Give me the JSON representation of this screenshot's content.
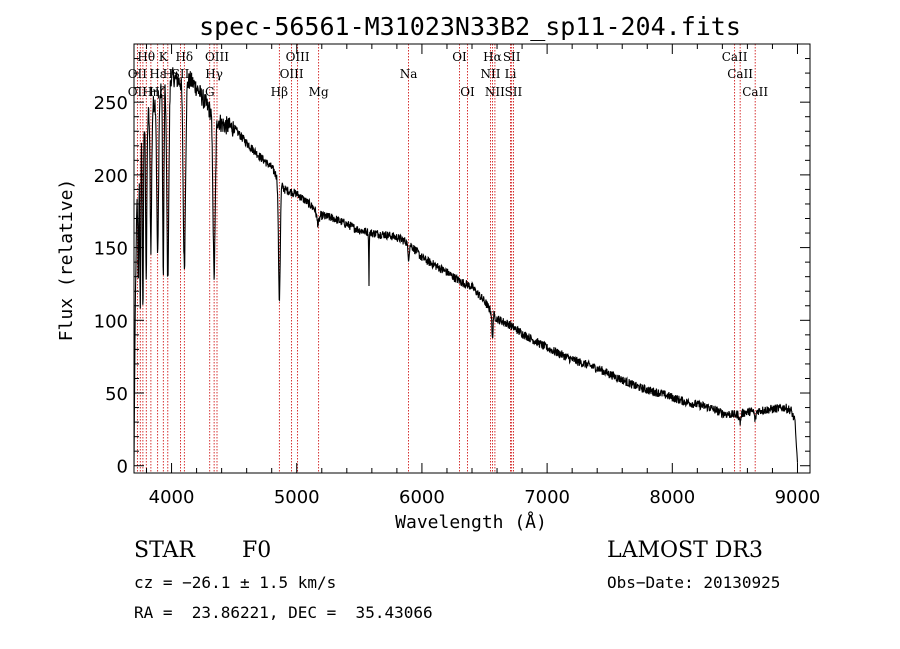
{
  "chart_data": {
    "type": "line",
    "title": "spec-56561-M31023N33B2_sp11-204.fits",
    "xlabel": "Wavelength (Å)",
    "ylabel": "Flux (relative)",
    "xlim": [
      3700,
      9100
    ],
    "ylim": [
      -5,
      290
    ],
    "xticks": [
      4000,
      5000,
      6000,
      7000,
      8000,
      9000
    ],
    "yticks": [
      0,
      50,
      100,
      150,
      200,
      250
    ],
    "x_minor_step": 200,
    "y_minor_step": 10,
    "grid": false,
    "series": [
      {
        "name": "spectrum",
        "continuum": [
          [
            3700,
            0
          ],
          [
            3710,
            110
          ],
          [
            3730,
            215
          ],
          [
            3760,
            225
          ],
          [
            3800,
            240
          ],
          [
            3850,
            248
          ],
          [
            3900,
            255
          ],
          [
            3950,
            262
          ],
          [
            4000,
            268
          ],
          [
            4050,
            265
          ],
          [
            4100,
            262
          ],
          [
            4150,
            265
          ],
          [
            4200,
            260
          ],
          [
            4300,
            245
          ],
          [
            4400,
            235
          ],
          [
            4500,
            232
          ],
          [
            4600,
            222
          ],
          [
            4700,
            213
          ],
          [
            4800,
            205
          ],
          [
            4900,
            190
          ],
          [
            5000,
            187
          ],
          [
            5100,
            180
          ],
          [
            5200,
            172
          ],
          [
            5300,
            170
          ],
          [
            5400,
            166
          ],
          [
            5500,
            162
          ],
          [
            5600,
            160
          ],
          [
            5700,
            159
          ],
          [
            5800,
            157
          ],
          [
            5900,
            153
          ],
          [
            6000,
            143
          ],
          [
            6100,
            138
          ],
          [
            6200,
            133
          ],
          [
            6300,
            127
          ],
          [
            6400,
            123
          ],
          [
            6500,
            113
          ],
          [
            6560,
            105
          ],
          [
            6600,
            101
          ],
          [
            6700,
            97
          ],
          [
            6800,
            91
          ],
          [
            6900,
            86
          ],
          [
            7000,
            81
          ],
          [
            7100,
            77
          ],
          [
            7200,
            73
          ],
          [
            7300,
            70
          ],
          [
            7400,
            67
          ],
          [
            7500,
            63
          ],
          [
            7600,
            59
          ],
          [
            7700,
            55
          ],
          [
            7800,
            52
          ],
          [
            7900,
            50
          ],
          [
            8000,
            47
          ],
          [
            8100,
            44
          ],
          [
            8200,
            42
          ],
          [
            8300,
            40
          ],
          [
            8400,
            36
          ],
          [
            8500,
            35
          ],
          [
            8600,
            37
          ],
          [
            8700,
            38
          ],
          [
            8800,
            39
          ],
          [
            8900,
            40
          ],
          [
            8950,
            38
          ],
          [
            8980,
            30
          ],
          [
            9000,
            2
          ]
        ],
        "absorption_features": [
          {
            "center": 3734,
            "depth": 95,
            "width": 4
          },
          {
            "center": 3750,
            "depth": 110,
            "width": 4
          },
          {
            "center": 3771,
            "depth": 120,
            "width": 4
          },
          {
            "center": 3798,
            "depth": 110,
            "width": 5
          },
          {
            "center": 3835,
            "depth": 95,
            "width": 6
          },
          {
            "center": 3889,
            "depth": 110,
            "width": 7
          },
          {
            "center": 3934,
            "depth": 130,
            "width": 5
          },
          {
            "center": 3970,
            "depth": 135,
            "width": 8
          },
          {
            "center": 4102,
            "depth": 125,
            "width": 9
          },
          {
            "center": 4340,
            "depth": 110,
            "width": 9
          },
          {
            "center": 4861,
            "depth": 82,
            "width": 7
          },
          {
            "center": 5170,
            "depth": 8,
            "width": 10
          },
          {
            "center": 5577,
            "depth": 35,
            "width": 2
          },
          {
            "center": 5893,
            "depth": 10,
            "width": 6
          },
          {
            "center": 6563,
            "depth": 18,
            "width": 4
          },
          {
            "center": 8542,
            "depth": 6,
            "width": 6
          },
          {
            "center": 8662,
            "depth": 6,
            "width": 6
          }
        ],
        "noise_amplitude": 3
      }
    ],
    "line_markers": [
      {
        "label": "Hθ",
        "wave": 3798,
        "row": 1
      },
      {
        "label": "K",
        "wave": 3934,
        "row": 1
      },
      {
        "label": "Hδ",
        "wave": 4102,
        "row": 1
      },
      {
        "label": "OIII",
        "wave": 4363,
        "row": 1
      },
      {
        "label": "OIII",
        "wave": 5007,
        "row": 1
      },
      {
        "label": "OI",
        "wave": 6300,
        "row": 1
      },
      {
        "label": "Hα",
        "wave": 6563,
        "row": 1
      },
      {
        "label": "SII",
        "wave": 6717,
        "row": 1
      },
      {
        "label": "CaII",
        "wave": 8498,
        "row": 1
      },
      {
        "label": "OII",
        "wave": 3727,
        "row": 2
      },
      {
        "label": "Hε",
        "wave": 3889,
        "row": 2
      },
      {
        "label": "H",
        "wave": 3970,
        "row": 2
      },
      {
        "label": "SII",
        "wave": 4072,
        "row": 2
      },
      {
        "label": "Hγ",
        "wave": 4340,
        "row": 2
      },
      {
        "label": "OIII",
        "wave": 4959,
        "row": 2
      },
      {
        "label": "Na",
        "wave": 5893,
        "row": 2
      },
      {
        "label": "NII",
        "wave": 6548,
        "row": 2
      },
      {
        "label": "Li",
        "wave": 6708,
        "row": 2
      },
      {
        "label": "CaII",
        "wave": 8542,
        "row": 2
      },
      {
        "label": "OII",
        "wave": 3727,
        "row": 3
      },
      {
        "label": "Hη",
        "wave": 3835,
        "row": 3
      },
      {
        "label": "Hζ",
        "wave": 3889,
        "row": 3
      },
      {
        "label": "G",
        "wave": 4305,
        "row": 3
      },
      {
        "label": "Hβ",
        "wave": 4861,
        "row": 3
      },
      {
        "label": "Mg",
        "wave": 5175,
        "row": 3
      },
      {
        "label": "OI",
        "wave": 6364,
        "row": 3
      },
      {
        "label": "NII",
        "wave": 6583,
        "row": 3
      },
      {
        "label": "SII",
        "wave": 6731,
        "row": 3
      },
      {
        "label": "CaII",
        "wave": 8662,
        "row": 3
      }
    ],
    "marker_lines": [
      3727,
      3750,
      3771,
      3798,
      3835,
      3889,
      3934,
      3970,
      4072,
      4102,
      4305,
      4340,
      4363,
      4861,
      4959,
      5007,
      5175,
      5893,
      6300,
      6364,
      6548,
      6563,
      6583,
      6708,
      6717,
      6731,
      8498,
      8542,
      8662
    ],
    "marker_color": "#cc0000",
    "line_color": "#000000"
  },
  "info": {
    "class": "STAR",
    "subclass": "F0",
    "survey": "LAMOST DR3",
    "cz": "cz = −26.1 ± 1.5 km/s",
    "obsdate": "Obs−Date: 20130925",
    "coords": "RA =  23.86221, DEC =  35.43066"
  }
}
